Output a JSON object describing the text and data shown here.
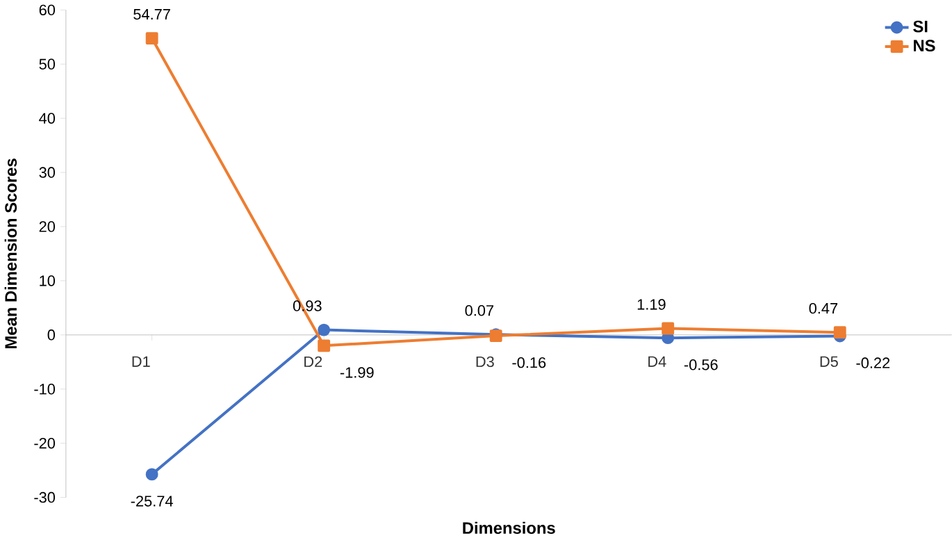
{
  "chart_data": {
    "type": "line",
    "xlabel": "Dimensions",
    "ylabel": "Mean Dimension Scores",
    "categories": [
      "D1",
      "D2",
      "D3",
      "D4",
      "D5"
    ],
    "series": [
      {
        "name": "SI",
        "color": "#4472c4",
        "marker": "circle",
        "values": [
          -25.74,
          0.93,
          0.07,
          -0.56,
          -0.22
        ]
      },
      {
        "name": "NS",
        "color": "#ed7d31",
        "marker": "square",
        "values": [
          54.77,
          -1.99,
          -0.16,
          1.19,
          0.47
        ]
      }
    ],
    "ylim": [
      -30,
      60
    ],
    "yticks": [
      -30,
      -20,
      -10,
      0,
      10,
      20,
      30,
      40,
      50,
      60
    ],
    "data_labels": true,
    "legend": "top right",
    "grid": false
  }
}
